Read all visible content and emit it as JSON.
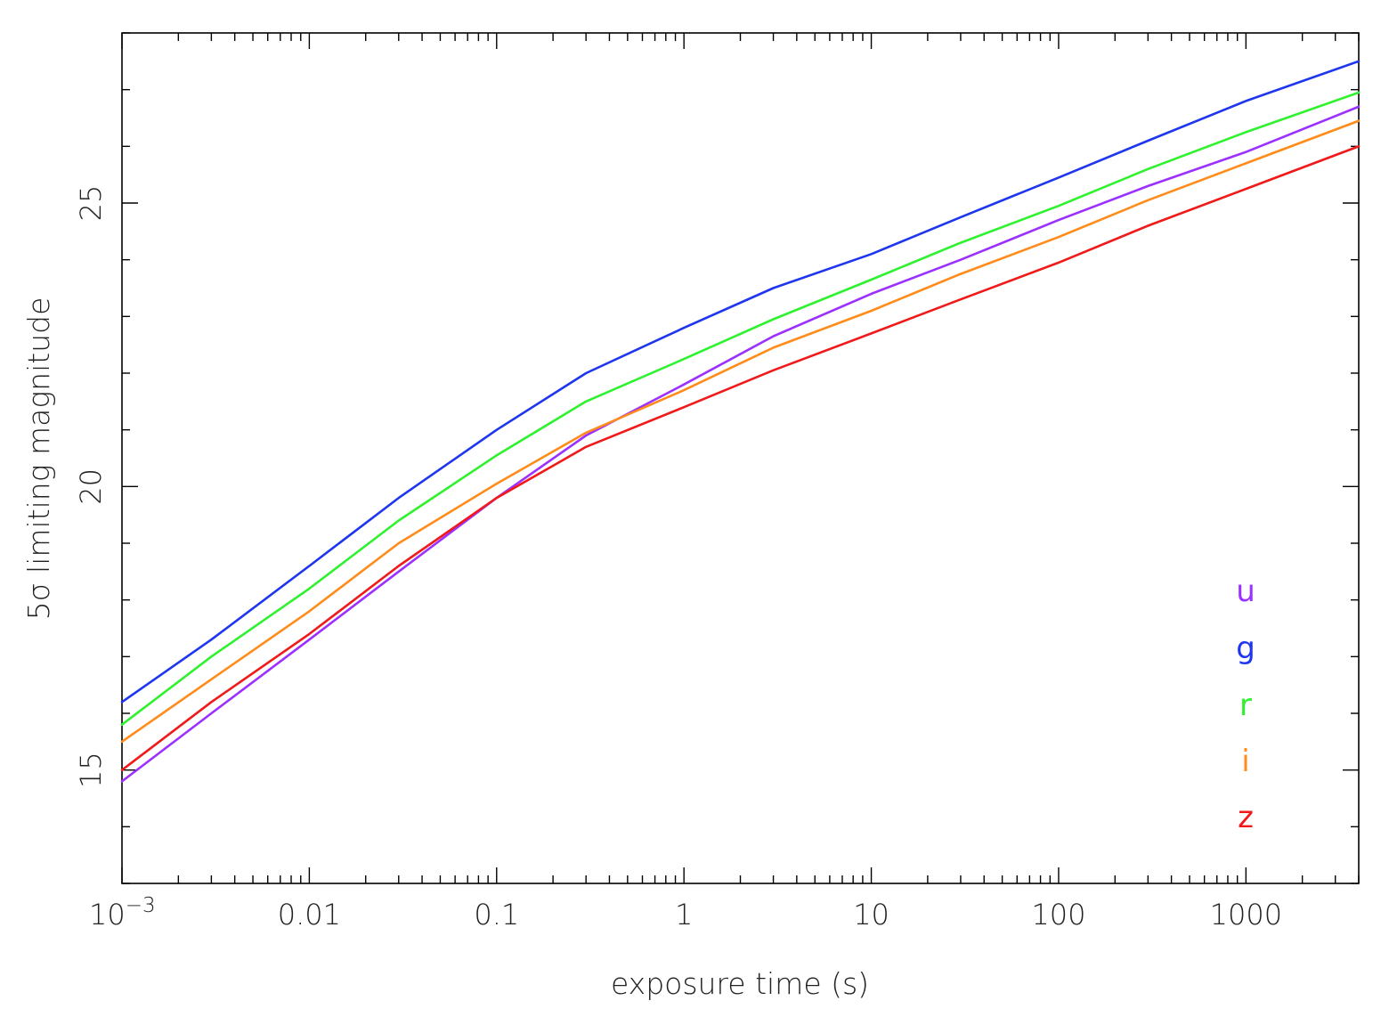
{
  "chart_data": {
    "type": "line",
    "xlabel": "exposure time (s)",
    "ylabel": "5σ limiting magnitude",
    "xscale": "log",
    "xlim": [
      0.001,
      4000
    ],
    "ylim": [
      13,
      28
    ],
    "grid": false,
    "legend_placement": "lower-right",
    "x_ticks": [
      {
        "value": 0.001,
        "label_base": "10",
        "label_exp": "−3"
      },
      {
        "value": 0.01,
        "label_base": "0.01",
        "label_exp": ""
      },
      {
        "value": 0.1,
        "label_base": "0.1",
        "label_exp": ""
      },
      {
        "value": 1,
        "label_base": "1",
        "label_exp": ""
      },
      {
        "value": 10,
        "label_base": "10",
        "label_exp": ""
      },
      {
        "value": 100,
        "label_base": "100",
        "label_exp": ""
      },
      {
        "value": 1000,
        "label_base": "1000",
        "label_exp": ""
      }
    ],
    "y_ticks": [
      {
        "value": 15,
        "label": "15"
      },
      {
        "value": 20,
        "label": "20"
      },
      {
        "value": 25,
        "label": "25"
      }
    ],
    "y_minor_step": 1,
    "x": [
      0.001,
      0.003,
      0.01,
      0.03,
      0.1,
      0.3,
      1,
      3,
      10,
      30,
      100,
      300,
      1000,
      4000
    ],
    "series": [
      {
        "name": "u",
        "color": "#9b30ff",
        "values": [
          14.8,
          16.0,
          17.3,
          18.5,
          19.8,
          20.9,
          21.8,
          22.65,
          23.4,
          24.0,
          24.7,
          25.3,
          25.9,
          26.7
        ]
      },
      {
        "name": "g",
        "color": "#1f36ef",
        "values": [
          16.2,
          17.3,
          18.6,
          19.8,
          21.0,
          22.0,
          22.8,
          23.5,
          24.1,
          24.75,
          25.45,
          26.1,
          26.8,
          27.5
        ]
      },
      {
        "name": "r",
        "color": "#2ff22f",
        "values": [
          15.8,
          17.0,
          18.2,
          19.4,
          20.55,
          21.5,
          22.25,
          22.95,
          23.65,
          24.3,
          24.95,
          25.6,
          26.25,
          26.95
        ]
      },
      {
        "name": "i",
        "color": "#ff8c1a",
        "values": [
          15.5,
          16.6,
          17.8,
          19.0,
          20.05,
          20.95,
          21.7,
          22.45,
          23.1,
          23.75,
          24.4,
          25.05,
          25.7,
          26.45
        ]
      },
      {
        "name": "z",
        "color": "#f01a1a",
        "values": [
          15.0,
          16.2,
          17.4,
          18.6,
          19.8,
          20.7,
          21.4,
          22.05,
          22.7,
          23.3,
          23.95,
          24.6,
          25.25,
          26.0
        ]
      }
    ]
  }
}
